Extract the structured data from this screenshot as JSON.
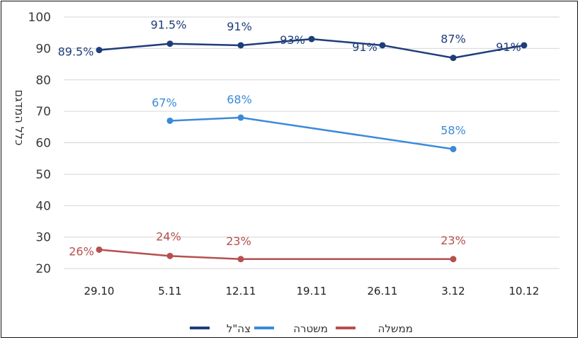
{
  "chart_data": {
    "type": "line",
    "ylabel": "כלל המדגם",
    "yticks": [
      20,
      30,
      40,
      50,
      60,
      70,
      80,
      90,
      100
    ],
    "ylim": [
      18,
      100
    ],
    "categories": [
      "29.10",
      "5.11",
      "12.11",
      "19.11",
      "26.11",
      "3.12",
      "10.12"
    ],
    "grid": true,
    "legend_position": "bottom",
    "series": [
      {
        "name": "צה\"ל",
        "color": "#1f3d7a",
        "values": [
          89.5,
          91.5,
          91,
          93,
          91,
          87,
          91
        ],
        "labels": [
          "89.5%",
          "91.5%",
          "91%",
          "93%",
          "91%",
          "87%",
          "91%"
        ]
      },
      {
        "name": "משטרה",
        "color": "#3b8ad9",
        "values": [
          null,
          67,
          68,
          null,
          null,
          58,
          null
        ],
        "labels": [
          null,
          "67%",
          "68%",
          null,
          null,
          "58%",
          null
        ]
      },
      {
        "name": "ממשלה",
        "color": "#b5504e",
        "values": [
          26,
          24,
          23,
          null,
          null,
          23,
          null
        ],
        "labels": [
          "26%",
          "24%",
          "23%",
          null,
          null,
          "23%",
          null
        ]
      }
    ]
  }
}
